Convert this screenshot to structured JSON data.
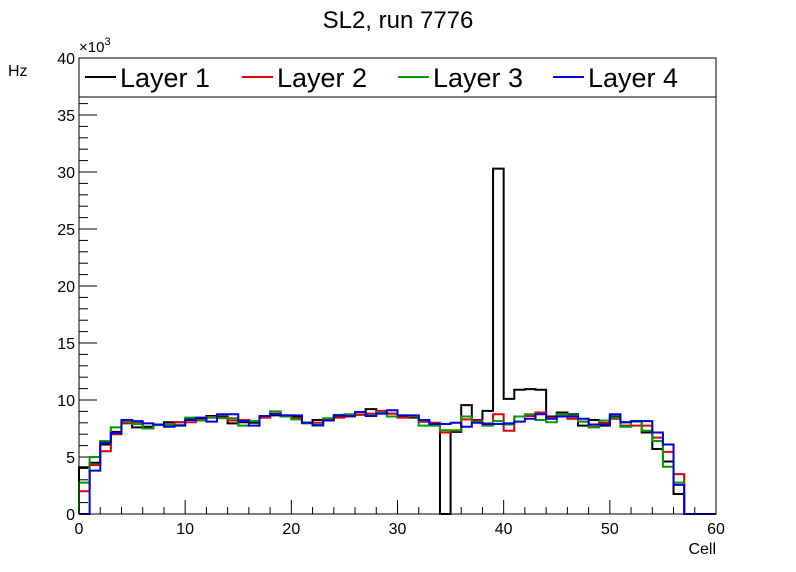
{
  "chart_data": {
    "type": "step",
    "title": "SL2, run 7776",
    "xlabel": "Cell",
    "ylabel": "Hz",
    "y_exponent_label": "×10",
    "y_exponent_power": "3",
    "xlim": [
      0,
      60
    ],
    "ylim": [
      0,
      40
    ],
    "x_ticks": [
      "0",
      "10",
      "20",
      "30",
      "40",
      "50",
      "60"
    ],
    "y_ticks": [
      "0",
      "5",
      "10",
      "15",
      "20",
      "25",
      "30",
      "35",
      "40"
    ],
    "y_unit_scale": 1000,
    "legend_position": "top",
    "bin_width": 1,
    "series": [
      {
        "name": "Layer 1",
        "color": "#000000",
        "values": [
          4.1,
          4.5,
          6.1,
          7.2,
          8.0,
          7.6,
          7.65,
          7.85,
          8.05,
          8.05,
          8.3,
          8.3,
          8.6,
          8.55,
          7.95,
          8.05,
          8.0,
          8.55,
          8.65,
          8.65,
          8.55,
          8.0,
          8.25,
          8.3,
          8.6,
          8.65,
          8.9,
          9.2,
          8.9,
          8.8,
          8.55,
          8.45,
          8.1,
          7.95,
          0,
          7.2,
          9.55,
          8.25,
          9.05,
          30.3,
          10.1,
          10.9,
          10.95,
          10.9,
          8.55,
          8.9,
          8.75,
          7.75,
          8.25,
          7.75,
          8.55,
          8.05,
          8.15,
          7.15,
          5.7,
          4.6,
          1.75,
          0,
          0,
          0
        ]
      },
      {
        "name": "Layer 2",
        "color": "#dd0000",
        "values": [
          2.0,
          4.3,
          5.5,
          7.0,
          7.95,
          8.05,
          7.5,
          7.85,
          7.85,
          8.05,
          8.05,
          8.25,
          8.45,
          8.45,
          8.2,
          8.25,
          8.15,
          8.45,
          8.8,
          8.55,
          8.4,
          8.0,
          8.0,
          8.3,
          8.45,
          8.55,
          8.7,
          8.8,
          9.05,
          8.8,
          8.45,
          8.55,
          8.15,
          8.0,
          7.15,
          7.3,
          8.3,
          8.2,
          7.95,
          8.75,
          7.3,
          8.55,
          8.6,
          8.9,
          8.45,
          8.75,
          8.35,
          8.1,
          7.65,
          8.0,
          8.35,
          7.75,
          7.75,
          7.75,
          6.7,
          5.45,
          3.5,
          0,
          0,
          0
        ]
      },
      {
        "name": "Layer 3",
        "color": "#009900",
        "values": [
          2.75,
          5.0,
          6.4,
          7.6,
          8.1,
          7.9,
          7.5,
          7.8,
          7.8,
          7.8,
          8.45,
          8.2,
          8.5,
          8.4,
          8.4,
          7.75,
          8.15,
          8.6,
          9.0,
          8.55,
          8.3,
          7.95,
          7.75,
          8.4,
          8.7,
          8.75,
          8.9,
          8.65,
          8.9,
          8.55,
          8.65,
          8.6,
          7.75,
          7.75,
          7.35,
          7.35,
          8.55,
          8.1,
          7.75,
          8.15,
          7.85,
          8.55,
          8.75,
          8.25,
          8.05,
          8.75,
          8.65,
          8.1,
          7.6,
          8.2,
          8.45,
          7.65,
          8.1,
          7.3,
          6.4,
          4.15,
          2.75,
          0,
          0,
          0
        ]
      },
      {
        "name": "Layer 4",
        "color": "#0000dd",
        "values": [
          0,
          3.8,
          6.25,
          7.1,
          8.25,
          8.15,
          7.95,
          7.85,
          7.65,
          7.75,
          8.25,
          8.45,
          8.1,
          8.75,
          8.75,
          8.15,
          7.75,
          8.6,
          8.75,
          8.65,
          8.65,
          8.0,
          7.8,
          8.2,
          8.65,
          8.6,
          8.95,
          8.6,
          8.8,
          9.1,
          8.65,
          8.65,
          8.25,
          7.9,
          7.9,
          8.0,
          7.65,
          8.0,
          7.9,
          7.9,
          7.95,
          8.1,
          8.35,
          8.75,
          8.35,
          8.55,
          8.55,
          8.35,
          7.85,
          7.85,
          8.75,
          8.05,
          8.15,
          8.15,
          7.15,
          6.1,
          2.55,
          0,
          0,
          0
        ]
      }
    ]
  }
}
